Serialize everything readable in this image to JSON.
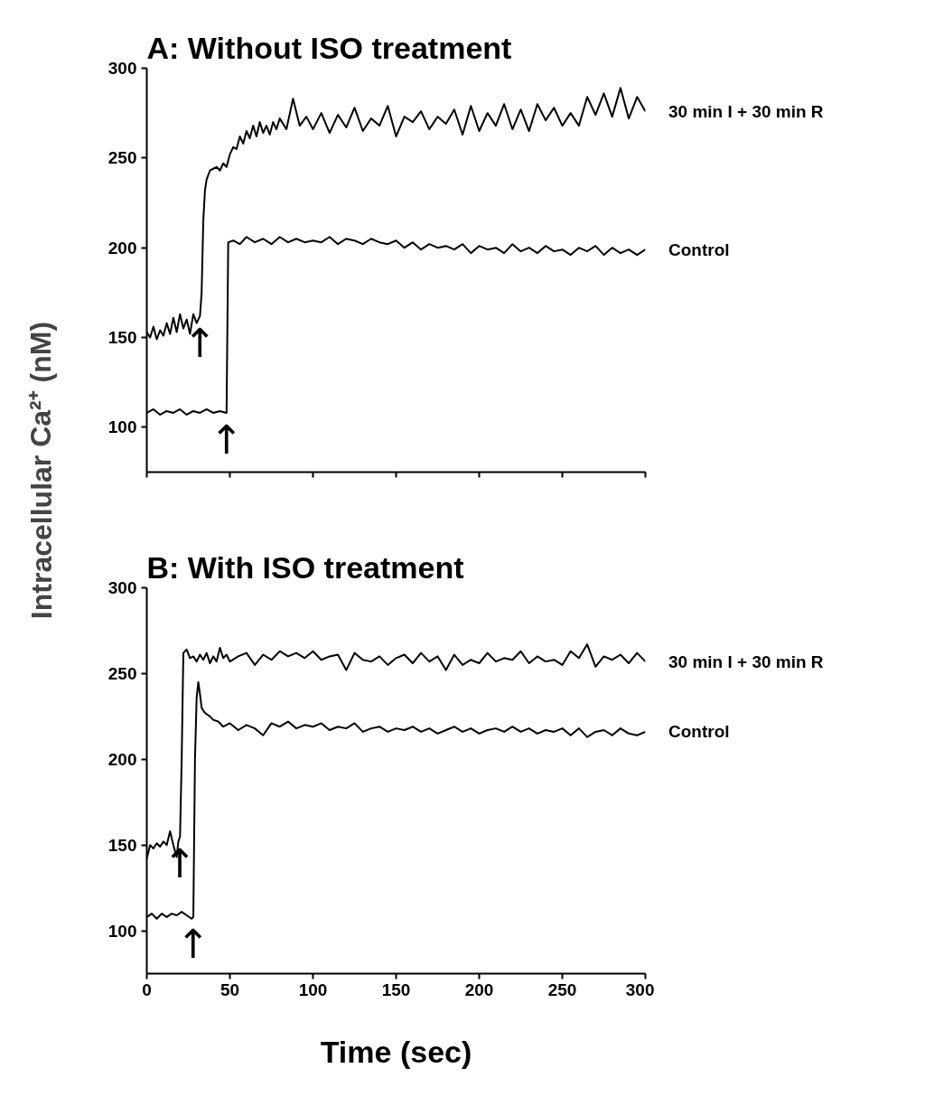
{
  "chart_data": [
    {
      "type": "line",
      "title": "A: Without ISO treatment",
      "ylabel": "Intracellular Ca²⁺ (nM)",
      "xlim": [
        0,
        300
      ],
      "xticks": [
        0,
        50,
        100,
        150,
        200,
        250,
        300
      ],
      "ylim": [
        75,
        300
      ],
      "yticks": [
        100,
        150,
        200,
        250,
        300
      ],
      "tick_labels": "y",
      "annotations": [
        {
          "text": "↑",
          "x": 32,
          "y": 162
        },
        {
          "text": "↑",
          "x": 48,
          "y": 108
        }
      ],
      "series": [
        {
          "name": "30 min I + 30 min R",
          "color": "#000000",
          "x": [
            0,
            2,
            4,
            6,
            8,
            10,
            12,
            14,
            16,
            18,
            20,
            22,
            24,
            26,
            28,
            30,
            32,
            33,
            34,
            35,
            36,
            38,
            40,
            42,
            44,
            46,
            48,
            50,
            52,
            54,
            56,
            58,
            60,
            62,
            64,
            66,
            68,
            70,
            72,
            74,
            76,
            78,
            80,
            84,
            88,
            92,
            96,
            100,
            105,
            110,
            115,
            120,
            125,
            130,
            135,
            140,
            145,
            150,
            155,
            160,
            165,
            170,
            175,
            180,
            185,
            190,
            195,
            200,
            205,
            210,
            215,
            220,
            225,
            230,
            235,
            240,
            245,
            250,
            255,
            260,
            265,
            270,
            275,
            280,
            285,
            290,
            295,
            300
          ],
          "values": [
            153,
            150,
            156,
            149,
            154,
            151,
            158,
            152,
            161,
            153,
            163,
            155,
            160,
            152,
            163,
            158,
            162,
            175,
            215,
            232,
            238,
            243,
            244,
            245,
            243,
            247,
            245,
            252,
            256,
            255,
            262,
            258,
            265,
            261,
            268,
            262,
            270,
            264,
            268,
            263,
            270,
            266,
            272,
            266,
            283,
            268,
            273,
            266,
            275,
            264,
            274,
            267,
            278,
            265,
            272,
            268,
            279,
            262,
            273,
            270,
            276,
            266,
            273,
            269,
            277,
            263,
            279,
            265,
            275,
            268,
            280,
            266,
            277,
            265,
            280,
            271,
            278,
            268,
            275,
            268,
            284,
            274,
            286,
            273,
            289,
            272,
            284,
            276
          ]
        },
        {
          "name": "Control",
          "color": "#000000",
          "x": [
            0,
            4,
            8,
            12,
            16,
            20,
            24,
            28,
            32,
            36,
            40,
            44,
            48,
            49,
            52,
            56,
            60,
            65,
            70,
            75,
            80,
            85,
            90,
            95,
            100,
            105,
            110,
            115,
            120,
            125,
            130,
            135,
            140,
            145,
            150,
            155,
            160,
            165,
            170,
            175,
            180,
            185,
            190,
            195,
            200,
            205,
            210,
            215,
            220,
            225,
            230,
            235,
            240,
            245,
            250,
            255,
            260,
            265,
            270,
            275,
            280,
            285,
            290,
            295,
            300
          ],
          "values": [
            108,
            110,
            107,
            109,
            108,
            110,
            107,
            109,
            108,
            110,
            108,
            109,
            108,
            203,
            204,
            202,
            206,
            203,
            205,
            202,
            206,
            203,
            205,
            203,
            204,
            203,
            206,
            202,
            205,
            204,
            202,
            205,
            203,
            202,
            204,
            200,
            203,
            199,
            202,
            200,
            201,
            199,
            202,
            197,
            201,
            199,
            200,
            197,
            202,
            198,
            200,
            197,
            201,
            198,
            199,
            196,
            200,
            198,
            201,
            196,
            200,
            197,
            199,
            196,
            199
          ]
        }
      ]
    },
    {
      "type": "line",
      "title": "B: With ISO treatment",
      "xlabel": "Time (sec)",
      "xlim": [
        0,
        300
      ],
      "xticks": [
        0,
        50,
        100,
        150,
        200,
        250,
        300
      ],
      "ylim": [
        75,
        300
      ],
      "yticks": [
        100,
        150,
        200,
        250,
        300
      ],
      "annotations": [
        {
          "text": "↑",
          "x": 20,
          "y": 155
        },
        {
          "text": "↑",
          "x": 28,
          "y": 108
        }
      ],
      "series": [
        {
          "name": "30 min I + 30 min R",
          "color": "#000000",
          "x": [
            0,
            2,
            4,
            6,
            8,
            10,
            12,
            14,
            16,
            18,
            19,
            20,
            21,
            22,
            24,
            26,
            28,
            30,
            32,
            34,
            36,
            38,
            40,
            42,
            44,
            46,
            48,
            50,
            55,
            60,
            65,
            70,
            75,
            80,
            85,
            90,
            95,
            100,
            105,
            110,
            115,
            120,
            125,
            130,
            135,
            140,
            145,
            150,
            155,
            160,
            165,
            170,
            175,
            180,
            185,
            190,
            195,
            200,
            205,
            210,
            215,
            220,
            225,
            230,
            235,
            240,
            245,
            250,
            255,
            260,
            265,
            270,
            275,
            280,
            285,
            290,
            295,
            300
          ],
          "values": [
            142,
            150,
            148,
            151,
            149,
            152,
            150,
            158,
            150,
            143,
            152,
            155,
            200,
            262,
            264,
            259,
            260,
            257,
            261,
            258,
            262,
            256,
            260,
            257,
            265,
            259,
            261,
            257,
            260,
            262,
            255,
            261,
            258,
            263,
            260,
            262,
            259,
            263,
            258,
            260,
            261,
            252,
            262,
            258,
            257,
            260,
            255,
            259,
            261,
            256,
            262,
            257,
            260,
            252,
            261,
            255,
            258,
            256,
            262,
            257,
            259,
            258,
            263,
            256,
            260,
            257,
            258,
            255,
            263,
            259,
            267,
            254,
            260,
            258,
            261,
            256,
            262,
            257
          ]
        },
        {
          "name": "Control",
          "color": "#000000",
          "x": [
            0,
            3,
            6,
            9,
            12,
            15,
            18,
            21,
            24,
            27,
            28,
            29,
            30,
            31,
            32,
            33,
            35,
            38,
            40,
            43,
            46,
            50,
            55,
            60,
            65,
            70,
            75,
            80,
            85,
            90,
            95,
            100,
            105,
            110,
            115,
            120,
            125,
            130,
            135,
            140,
            145,
            150,
            155,
            160,
            165,
            170,
            175,
            180,
            185,
            190,
            195,
            200,
            205,
            210,
            215,
            220,
            225,
            230,
            235,
            240,
            245,
            250,
            255,
            260,
            265,
            270,
            275,
            280,
            285,
            290,
            295,
            300
          ],
          "values": [
            108,
            110,
            107,
            110,
            108,
            110,
            109,
            111,
            109,
            107,
            108,
            200,
            236,
            245,
            238,
            230,
            227,
            225,
            223,
            222,
            219,
            221,
            217,
            220,
            218,
            214,
            221,
            219,
            222,
            218,
            220,
            219,
            221,
            217,
            219,
            218,
            221,
            216,
            218,
            219,
            216,
            218,
            217,
            219,
            216,
            218,
            215,
            217,
            219,
            216,
            218,
            215,
            217,
            218,
            216,
            219,
            216,
            218,
            215,
            217,
            216,
            218,
            214,
            218,
            213,
            216,
            217,
            214,
            218,
            215,
            214,
            216
          ]
        }
      ]
    }
  ]
}
